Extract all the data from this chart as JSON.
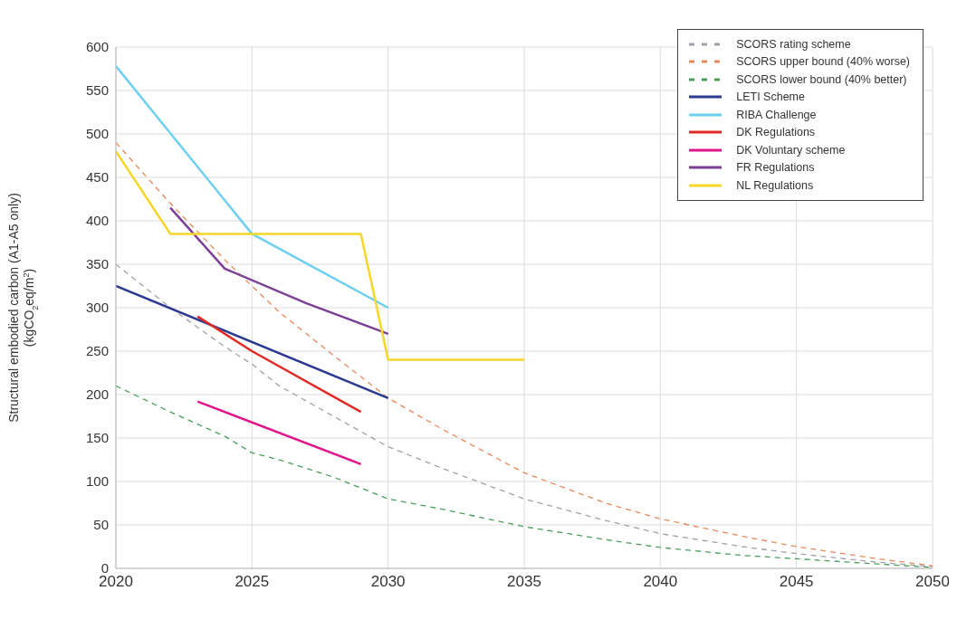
{
  "chart_data": {
    "type": "line",
    "ylabel": "Structural embodied carbon (A1-A5 only)\n(kgCO$_{2}$eq/m$^{2}$)",
    "xlim": [
      2020,
      2050
    ],
    "xticks": [
      2020,
      2025,
      2030,
      2035,
      2040,
      2045,
      2050
    ],
    "ylim": [
      0,
      600
    ],
    "yticks": [
      0,
      50,
      100,
      150,
      200,
      250,
      300,
      350,
      400,
      450,
      500,
      550,
      600
    ],
    "grid": true,
    "legend": "top right",
    "series": [
      {
        "name": "SCORS rating scheme",
        "color": "#a0a0a8",
        "line_style": "dashed",
        "x": [
          2020,
          2022,
          2024,
          2025,
          2026,
          2028,
          2030,
          2032,
          2035,
          2038,
          2040,
          2043,
          2045,
          2048,
          2050
        ],
        "values": [
          350,
          300,
          255,
          235,
          210,
          175,
          140,
          115,
          80,
          55,
          40,
          25,
          17,
          7,
          2
        ]
      },
      {
        "name": "SCORS upper bound (40% worse)",
        "color": "#e8875a",
        "line_style": "dashed",
        "x": [
          2020,
          2022,
          2024,
          2025,
          2026,
          2028,
          2030,
          2032,
          2035,
          2038,
          2040,
          2043,
          2045,
          2048,
          2050
        ],
        "values": [
          490,
          420,
          355,
          325,
          295,
          245,
          196,
          160,
          110,
          75,
          57,
          37,
          25,
          11,
          3
        ]
      },
      {
        "name": "SCORS lower bound (40% better)",
        "color": "#4a9e5c",
        "line_style": "dashed",
        "x": [
          2020,
          2022,
          2024,
          2025,
          2026,
          2028,
          2030,
          2032,
          2035,
          2038,
          2040,
          2043,
          2045,
          2048,
          2050
        ],
        "values": [
          210,
          180,
          152,
          133,
          125,
          105,
          80,
          68,
          48,
          33,
          24,
          15,
          11,
          5,
          1
        ]
      },
      {
        "name": "LETI Scheme",
        "color": "#2b3990",
        "x": [
          2020,
          2030
        ],
        "values": [
          325,
          196
        ]
      },
      {
        "name": "RIBA Challenge",
        "color": "#6ccff0",
        "x": [
          2020,
          2025,
          2030
        ],
        "values": [
          578,
          385,
          300
        ]
      },
      {
        "name": "DK Regulations",
        "color": "#e02a26",
        "x": [
          2023,
          2025,
          2029
        ],
        "values": [
          290,
          250,
          180
        ]
      },
      {
        "name": "DK Voluntary scheme",
        "color": "#e0168a",
        "x": [
          2023,
          2029
        ],
        "values": [
          192,
          120
        ]
      },
      {
        "name": "FR Regulations",
        "color": "#7b3f98",
        "x": [
          2022,
          2024,
          2027,
          2030
        ],
        "values": [
          415,
          345,
          305,
          270
        ]
      },
      {
        "name": "NL Regulations",
        "color": "#f5d629",
        "x": [
          2020,
          2022,
          2029,
          2030,
          2035
        ],
        "values": [
          480,
          385,
          385,
          240,
          240
        ]
      }
    ]
  }
}
